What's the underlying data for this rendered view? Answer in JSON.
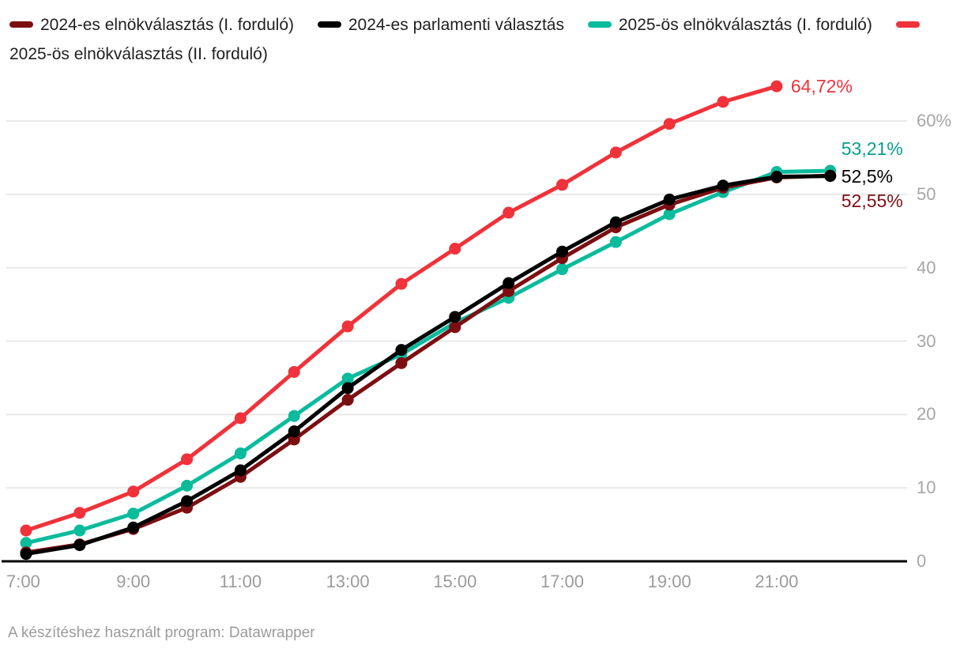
{
  "legend": {
    "items": [
      {
        "label": "2024-es elnökválasztás (I. forduló)",
        "color": "#7c0e11"
      },
      {
        "label": "2024-es parlamenti választás",
        "color": "#000000"
      },
      {
        "label": "2025-ös elnökválasztás (I. forduló)",
        "color": "#0abb9c"
      },
      {
        "label": "2025-ös elnökválasztás (II. forduló)",
        "color": "#f0323a"
      }
    ]
  },
  "chart_data": {
    "type": "line",
    "title": "",
    "x": [
      "7:00",
      "8:00",
      "9:00",
      "10:00",
      "11:00",
      "12:00",
      "13:00",
      "14:00",
      "15:00",
      "16:00",
      "17:00",
      "18:00",
      "19:00",
      "20:00",
      "21:00",
      "22:00"
    ],
    "series": [
      {
        "name": "2024-es elnökválasztás (I. forduló)",
        "color": "#7c0e11",
        "values": [
          1.2,
          2.3,
          4.4,
          7.3,
          11.5,
          16.6,
          22.0,
          27.0,
          31.9,
          36.8,
          41.3,
          45.5,
          48.6,
          50.9,
          52.3,
          52.55
        ],
        "end_label": "52,55%",
        "end_label_color": "#7c0e11"
      },
      {
        "name": "2024-es parlamenti választás",
        "color": "#000000",
        "values": [
          1.0,
          2.2,
          4.6,
          8.2,
          12.4,
          17.7,
          23.6,
          28.8,
          33.3,
          37.9,
          42.2,
          46.2,
          49.3,
          51.2,
          52.4,
          52.5
        ],
        "end_label": "52,5%",
        "end_label_color": "#000000"
      },
      {
        "name": "2025-ös elnökválasztás (I. forduló)",
        "color": "#0abb9c",
        "values": [
          2.5,
          4.2,
          6.5,
          10.3,
          14.7,
          19.8,
          24.9,
          28.2,
          32.5,
          35.9,
          39.8,
          43.5,
          47.3,
          50.3,
          53.05,
          53.21
        ],
        "end_label": "53,21%",
        "end_label_color": "#0b9e8d"
      },
      {
        "name": "2025-ös elnökválasztás (II. forduló)",
        "color": "#f0323a",
        "values": [
          4.2,
          6.6,
          9.5,
          13.9,
          19.5,
          25.8,
          32.0,
          37.8,
          42.6,
          47.5,
          51.3,
          55.7,
          59.6,
          62.6,
          64.72,
          null
        ],
        "end_label": "64,72%",
        "end_label_color": "#f0323a"
      }
    ],
    "y_axis": {
      "ticks": [
        {
          "v": 0,
          "label": "0"
        },
        {
          "v": 10,
          "label": "10"
        },
        {
          "v": 20,
          "label": "20"
        },
        {
          "v": 30,
          "label": "30"
        },
        {
          "v": 40,
          "label": "40"
        },
        {
          "v": 50,
          "label": "50"
        },
        {
          "v": 60,
          "label": "60%"
        }
      ],
      "range": [
        0,
        66
      ]
    },
    "x_axis": {
      "tick_labels": [
        {
          "pos": 0,
          "label": "7:00"
        },
        {
          "pos": 2,
          "label": "9:00"
        },
        {
          "pos": 4,
          "label": "11:00"
        },
        {
          "pos": 6,
          "label": "13:00"
        },
        {
          "pos": 8,
          "label": "15:00"
        },
        {
          "pos": 10,
          "label": "17:00"
        },
        {
          "pos": 12,
          "label": "19:00"
        },
        {
          "pos": 14,
          "label": "21:00"
        }
      ]
    },
    "grid": "horizontal",
    "legend_position": "top",
    "draw_order": [
      2,
      0,
      1,
      3
    ],
    "colors": {
      "gridline": "#e9e9e9",
      "axis_line": "#000000",
      "tick_label": "#a6a6a6"
    }
  },
  "footer": {
    "credit": "A készítéshez használt program: Datawrapper"
  }
}
